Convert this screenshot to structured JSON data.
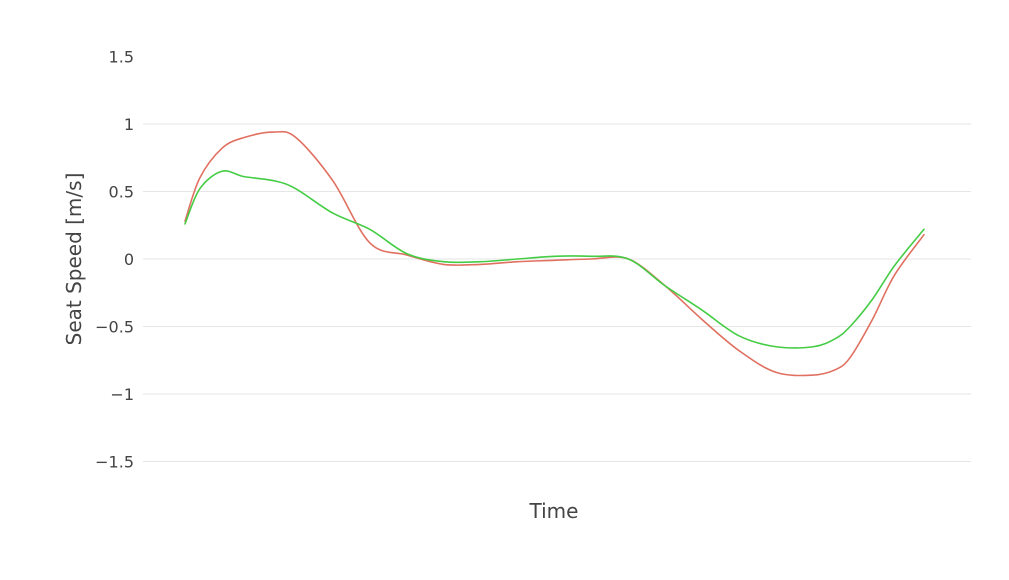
{
  "chart_data": {
    "type": "line",
    "title": "",
    "xlabel": "Time",
    "ylabel": "Seat Speed [m/s]",
    "ylim": [
      -1.7,
      1.7
    ],
    "yticks": [
      1.5,
      1,
      0.5,
      0,
      -0.5,
      -1,
      -1.5
    ],
    "ytick_labels": [
      "1.5",
      "1",
      "0.5",
      "0",
      "−0.5",
      "−1",
      "−1.5"
    ],
    "xlim": [
      0,
      100
    ],
    "grid": true,
    "legend": "none",
    "x": [
      0,
      2,
      5,
      8,
      12,
      15,
      20,
      25,
      30,
      35,
      40,
      45,
      50,
      55,
      60,
      65,
      70,
      75,
      80,
      85,
      88,
      90,
      93,
      96,
      100
    ],
    "series": [
      {
        "color": "#e07060",
        "values": [
          0.28,
          0.6,
          0.82,
          0.9,
          0.94,
          0.9,
          0.58,
          0.12,
          0.03,
          -0.04,
          -0.04,
          -0.02,
          -0.01,
          0.0,
          0.0,
          -0.2,
          -0.45,
          -0.68,
          -0.84,
          -0.86,
          -0.82,
          -0.73,
          -0.45,
          -0.12,
          0.18
        ]
      },
      {
        "color": "#44cc44",
        "values": [
          0.26,
          0.52,
          0.65,
          0.61,
          0.58,
          0.52,
          0.34,
          0.22,
          0.04,
          -0.02,
          -0.02,
          0.0,
          0.02,
          0.02,
          0.0,
          -0.2,
          -0.38,
          -0.57,
          -0.65,
          -0.65,
          -0.59,
          -0.5,
          -0.3,
          -0.05,
          0.22
        ]
      }
    ]
  }
}
